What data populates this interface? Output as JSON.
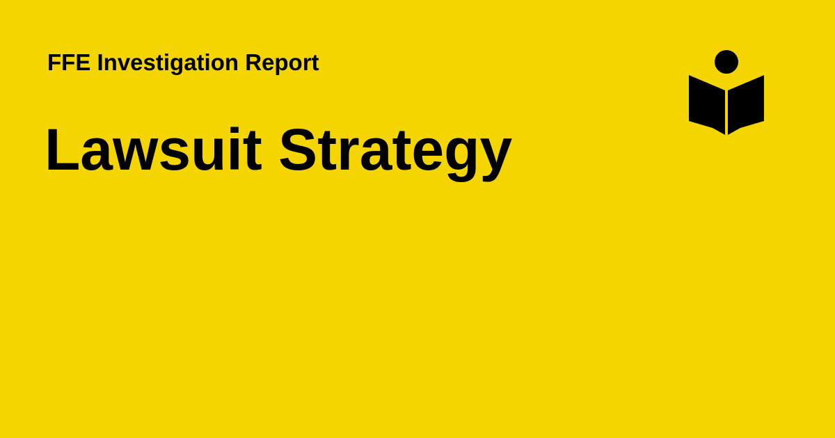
{
  "page": {
    "background_color": "#f4d500",
    "text_color": "#000000"
  },
  "header": {
    "eyebrow": "FFE Investigation Report"
  },
  "main": {
    "title": "Lawsuit Strategy"
  },
  "brand": {
    "icon": "reader-book-icon"
  }
}
